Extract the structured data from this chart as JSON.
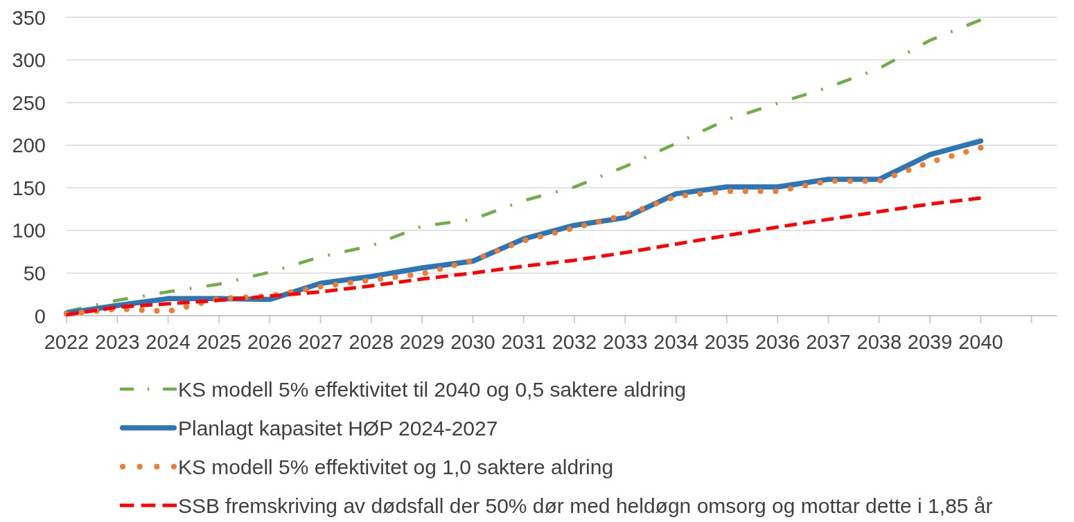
{
  "chart_data": {
    "type": "line",
    "categories": [
      "2022",
      "2023",
      "2024",
      "2025",
      "2026",
      "2027",
      "2028",
      "2029",
      "2030",
      "2031",
      "2032",
      "2033",
      "2034",
      "2035",
      "2036",
      "2037",
      "2038",
      "2039",
      "2040",
      null
    ],
    "ylim": [
      0,
      350
    ],
    "yticks": [
      0,
      50,
      100,
      150,
      200,
      250,
      300,
      350
    ],
    "grid": "y",
    "legend": "bottom",
    "series": [
      {
        "name": "KS modell 5% effektivitet til 2040 og 0,5 saktere aldring",
        "color": "#70ad47",
        "line_style": "dashdot",
        "values": [
          5,
          18,
          28,
          37,
          51,
          69,
          82,
          105,
          113,
          135,
          151,
          175,
          202,
          230,
          249,
          268,
          290,
          323,
          347,
          null
        ]
      },
      {
        "name": "Planlagt kapasitet HØP 2024-2027",
        "color": "#2e75b6",
        "line_style": "solid",
        "values": [
          3,
          12,
          20,
          20,
          19,
          38,
          46,
          56,
          64,
          90,
          106,
          115,
          143,
          151,
          151,
          160,
          160,
          189,
          205,
          null
        ]
      },
      {
        "name": "KS modell 5% effektivitet og 1,0 saktere aldring",
        "color": "#ed7d31",
        "line_style": "dotted",
        "values": [
          2,
          8,
          5,
          20,
          23,
          34,
          42,
          49,
          65,
          88,
          103,
          118,
          140,
          146,
          146,
          158,
          158,
          180,
          197,
          null
        ]
      },
      {
        "name": "SSB fremskriving av dødsfall der 50% dør med heldøgn omsorg og mottar dette i 1,85 år",
        "color": "#ff0000",
        "line_style": "dashed",
        "values": [
          1,
          10,
          14,
          18,
          23,
          28,
          35,
          43,
          50,
          58,
          65,
          74,
          84,
          94,
          104,
          113,
          122,
          131,
          138,
          null
        ]
      }
    ]
  }
}
